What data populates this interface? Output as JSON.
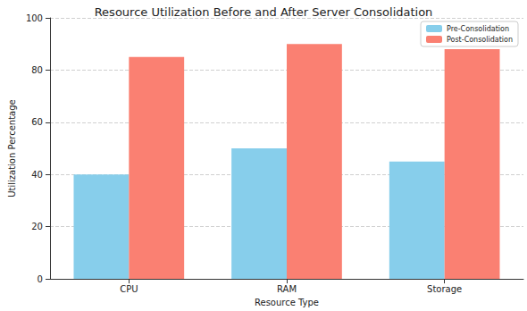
{
  "chart_data": {
    "type": "bar",
    "title": "Resource Utilization Before and After Server Consolidation",
    "x_label": "Resource Type",
    "y_label": "Utilization Percentage",
    "categories": [
      "CPU",
      "RAM",
      "Storage"
    ],
    "series": [
      {
        "name": "Pre-Consolidation",
        "color": "#87ceeb",
        "values": [
          40,
          50,
          45
        ]
      },
      {
        "name": "Post-Consolidation",
        "color": "#fa8072",
        "values": [
          85,
          90,
          88
        ]
      }
    ],
    "ylim": [
      0,
      100
    ],
    "yticks": [
      0,
      20,
      40,
      60,
      80,
      100
    ],
    "grid": true,
    "legend": "upper right"
  }
}
